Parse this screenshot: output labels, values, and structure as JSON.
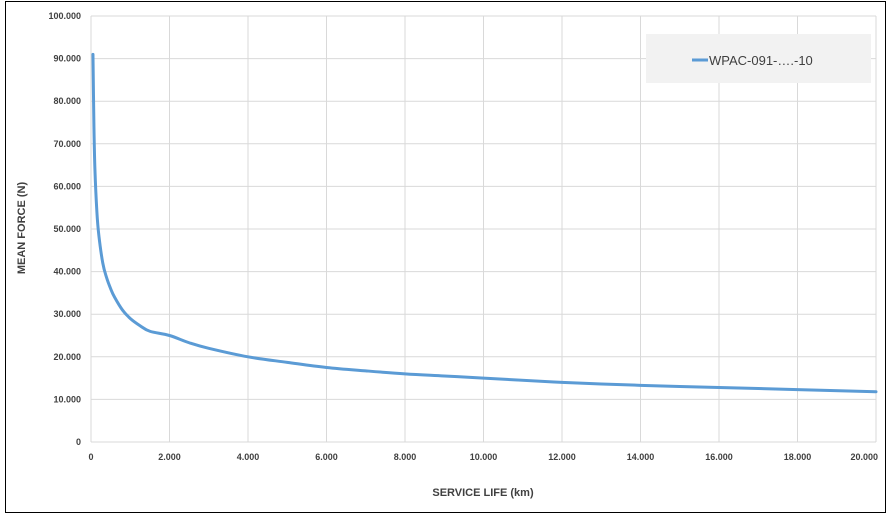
{
  "chart_data": {
    "type": "line",
    "title": "",
    "xlabel": "SERVICE LIFE (km)",
    "ylabel": "MEAN FORCE (N)",
    "xlim": [
      0,
      20000
    ],
    "ylim": [
      0,
      100000
    ],
    "x_ticks": [
      0,
      2000,
      4000,
      6000,
      8000,
      10000,
      12000,
      14000,
      16000,
      18000,
      20000
    ],
    "x_tick_labels": [
      "0",
      "2.000",
      "4.000",
      "6.000",
      "8.000",
      "10.000",
      "12.000",
      "14.000",
      "16.000",
      "18.000",
      "20.000"
    ],
    "y_ticks": [
      0,
      10000,
      20000,
      30000,
      40000,
      50000,
      60000,
      70000,
      80000,
      90000,
      100000
    ],
    "y_tick_labels": [
      "0",
      "10.000",
      "20.000",
      "30.000",
      "40.000",
      "50.000",
      "60.000",
      "70.000",
      "80.000",
      "90.000",
      "100.000"
    ],
    "grid": true,
    "legend_position": "top-right",
    "series": [
      {
        "name": "WPAC-091-….-10",
        "color": "#5b9bd5",
        "x": [
          50,
          75,
          100,
          150,
          200,
          300,
          400,
          500,
          600,
          800,
          1000,
          1250,
          1500,
          2000,
          2500,
          3000,
          4000,
          5000,
          6000,
          7000,
          8000,
          9000,
          10000,
          12000,
          14000,
          16000,
          18000,
          20000
        ],
        "y": [
          91000,
          74000,
          64000,
          54000,
          48500,
          42000,
          38500,
          36000,
          34000,
          31000,
          29000,
          27300,
          26000,
          25000,
          23300,
          22000,
          20000,
          18700,
          17500,
          16700,
          16000,
          15500,
          15000,
          14000,
          13300,
          12800,
          12300,
          11800
        ]
      }
    ]
  }
}
